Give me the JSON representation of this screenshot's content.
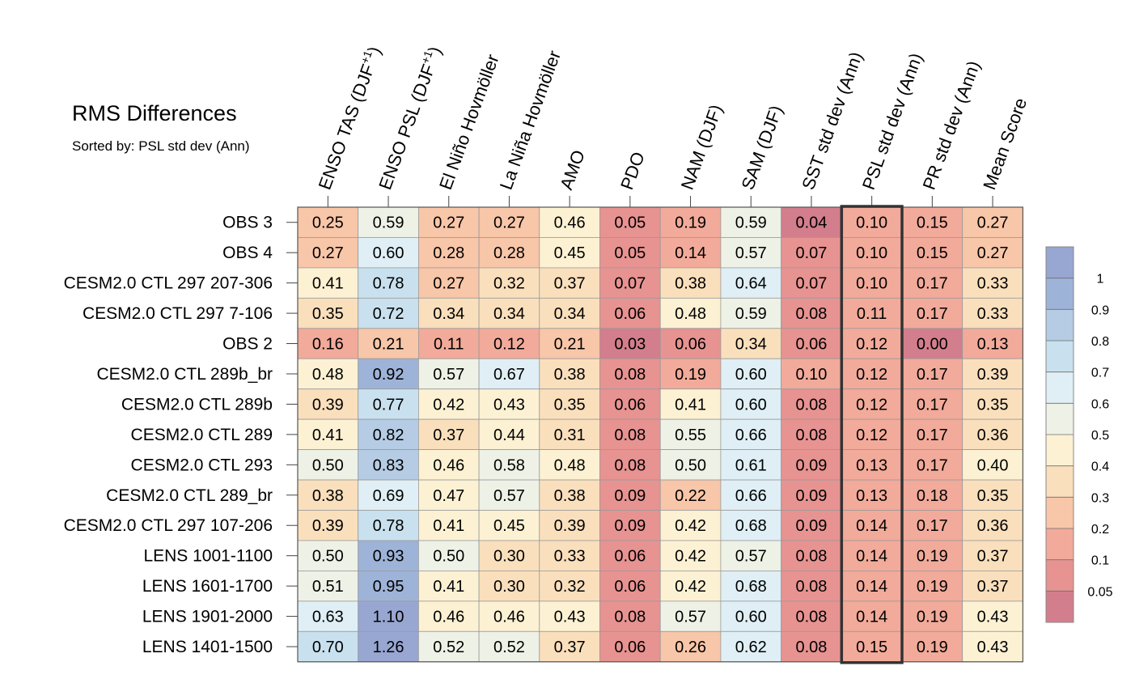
{
  "title": "RMS Differences",
  "subtitle": "Sorted by: PSL std dev (Ann)",
  "chart_data": {
    "type": "heatmap",
    "title": "RMS Differences",
    "subtitle": "Sorted by: PSL std dev (Ann)",
    "columns": [
      {
        "pre": "ENSO TAS (DJF",
        "sup": "+1",
        "post": ")"
      },
      {
        "pre": "ENSO PSL (DJF",
        "sup": "+1",
        "post": ")"
      },
      {
        "pre": "El Niño Hovmöller",
        "sup": "",
        "post": ""
      },
      {
        "pre": "La Niña Hovmöller",
        "sup": "",
        "post": ""
      },
      {
        "pre": "AMO",
        "sup": "",
        "post": ""
      },
      {
        "pre": "PDO",
        "sup": "",
        "post": ""
      },
      {
        "pre": "NAM (DJF)",
        "sup": "",
        "post": ""
      },
      {
        "pre": "SAM (DJF)",
        "sup": "",
        "post": ""
      },
      {
        "pre": "SST std dev (Ann)",
        "sup": "",
        "post": ""
      },
      {
        "pre": "PSL std dev (Ann)",
        "sup": "",
        "post": ""
      },
      {
        "pre": "PR std dev (Ann)",
        "sup": "",
        "post": ""
      },
      {
        "pre": "Mean Score",
        "sup": "",
        "post": ""
      }
    ],
    "highlight_column": "PSL std dev (Ann)",
    "rows": [
      "OBS 3",
      "OBS 4",
      "CESM2.0 CTL 297 207-306",
      "CESM2.0 CTL 297 7-106",
      "OBS 2",
      "CESM2.0 CTL 289b_br",
      "CESM2.0 CTL 289b",
      "CESM2.0 CTL 289",
      "CESM2.0 CTL 293",
      "CESM2.0 CTL 289_br",
      "CESM2.0 CTL 297 107-206",
      "LENS 1001-1100",
      "LENS 1601-1700",
      "LENS 1901-2000",
      "LENS 1401-1500"
    ],
    "values": [
      [
        "0.25",
        "0.59",
        "0.27",
        "0.27",
        "0.46",
        "0.05",
        "0.19",
        "0.59",
        "0.04",
        "0.10",
        "0.15",
        "0.27"
      ],
      [
        "0.27",
        "0.60",
        "0.28",
        "0.28",
        "0.45",
        "0.05",
        "0.14",
        "0.57",
        "0.07",
        "0.10",
        "0.15",
        "0.27"
      ],
      [
        "0.41",
        "0.78",
        "0.27",
        "0.32",
        "0.37",
        "0.07",
        "0.38",
        "0.64",
        "0.07",
        "0.10",
        "0.17",
        "0.33"
      ],
      [
        "0.35",
        "0.72",
        "0.34",
        "0.34",
        "0.34",
        "0.06",
        "0.48",
        "0.59",
        "0.08",
        "0.11",
        "0.17",
        "0.33"
      ],
      [
        "0.16",
        "0.21",
        "0.11",
        "0.12",
        "0.21",
        "0.03",
        "0.06",
        "0.34",
        "0.06",
        "0.12",
        "0.00",
        "0.13"
      ],
      [
        "0.48",
        "0.92",
        "0.57",
        "0.67",
        "0.38",
        "0.08",
        "0.19",
        "0.60",
        "0.10",
        "0.12",
        "0.17",
        "0.39"
      ],
      [
        "0.39",
        "0.77",
        "0.42",
        "0.43",
        "0.35",
        "0.06",
        "0.41",
        "0.60",
        "0.08",
        "0.12",
        "0.17",
        "0.35"
      ],
      [
        "0.41",
        "0.82",
        "0.37",
        "0.44",
        "0.31",
        "0.08",
        "0.55",
        "0.66",
        "0.08",
        "0.12",
        "0.17",
        "0.36"
      ],
      [
        "0.50",
        "0.83",
        "0.46",
        "0.58",
        "0.48",
        "0.08",
        "0.50",
        "0.61",
        "0.09",
        "0.13",
        "0.17",
        "0.40"
      ],
      [
        "0.38",
        "0.69",
        "0.47",
        "0.57",
        "0.38",
        "0.09",
        "0.22",
        "0.66",
        "0.09",
        "0.13",
        "0.18",
        "0.35"
      ],
      [
        "0.39",
        "0.78",
        "0.41",
        "0.45",
        "0.39",
        "0.09",
        "0.42",
        "0.68",
        "0.09",
        "0.14",
        "0.17",
        "0.36"
      ],
      [
        "0.50",
        "0.93",
        "0.50",
        "0.30",
        "0.33",
        "0.06",
        "0.42",
        "0.57",
        "0.08",
        "0.14",
        "0.19",
        "0.37"
      ],
      [
        "0.51",
        "0.95",
        "0.41",
        "0.30",
        "0.32",
        "0.06",
        "0.42",
        "0.68",
        "0.08",
        "0.14",
        "0.19",
        "0.37"
      ],
      [
        "0.63",
        "1.10",
        "0.46",
        "0.46",
        "0.43",
        "0.08",
        "0.57",
        "0.60",
        "0.08",
        "0.14",
        "0.19",
        "0.43"
      ],
      [
        "0.70",
        "1.26",
        "0.52",
        "0.52",
        "0.37",
        "0.06",
        "0.26",
        "0.62",
        "0.08",
        "0.15",
        "0.19",
        "0.43"
      ]
    ],
    "colorbar": {
      "labels": [
        "1",
        "0.9",
        "0.8",
        "0.7",
        "0.6",
        "0.5",
        "0.4",
        "0.3",
        "0.2",
        "0.1",
        "0.05"
      ],
      "thresholds": [
        0.05,
        0.1,
        0.2,
        0.3,
        0.4,
        0.5,
        0.6,
        0.7,
        0.8,
        0.9,
        1
      ],
      "colors": [
        "#d37e8d",
        "#e79391",
        "#f2aa9a",
        "#f8c6a8",
        "#fadfbc",
        "#fcf1d3",
        "#eef1e6",
        "#dfeff5",
        "#c9e1ee",
        "#b5cce4",
        "#9eb3d8",
        "#98a6d2"
      ]
    }
  }
}
